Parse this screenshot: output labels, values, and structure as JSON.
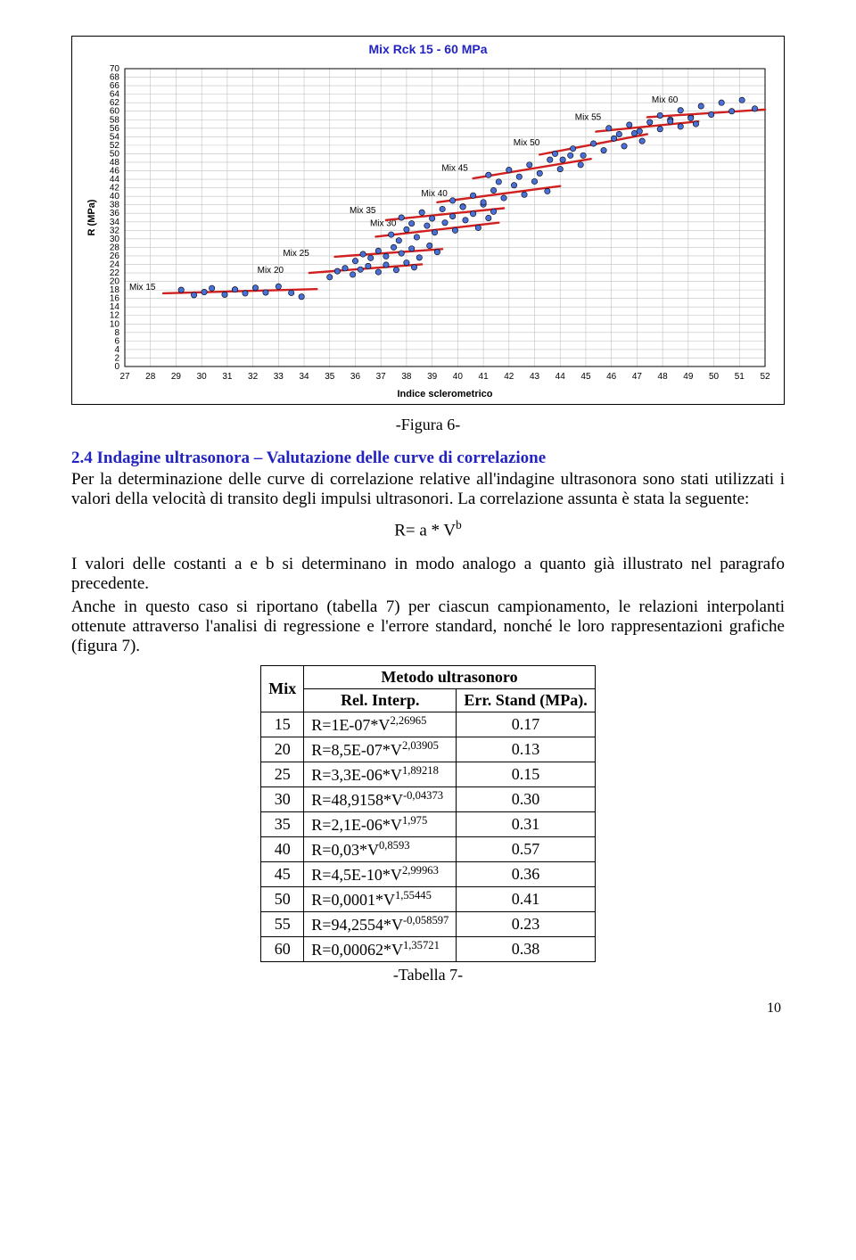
{
  "chart": {
    "title": "Mix Rck 15 - 60 MPa",
    "title_color": "#2323c0",
    "xlabel": "Indice sclerometrico",
    "ylabel": "R (MPa)",
    "xmin": 27,
    "xmax": 52,
    "xstep": 1,
    "ymin": 0,
    "ymax": 70,
    "ystep": 2,
    "bg": "#ffffff",
    "grid_color": "#c0c0c0",
    "border_color": "#000000",
    "marker_fill": "#4a70d8",
    "marker_stroke": "#000000",
    "marker_r": 3.2,
    "line_color": "#d02020",
    "line_w": 2.4,
    "series": [
      {
        "label": "Mix 15",
        "lx": 28.2,
        "ly": 18,
        "line": [
          [
            28.5,
            17.2
          ],
          [
            34.5,
            18.2
          ]
        ],
        "pts": [
          [
            29.2,
            18
          ],
          [
            29.7,
            16.8
          ],
          [
            30.1,
            17.5
          ],
          [
            30.4,
            18.4
          ],
          [
            30.9,
            16.9
          ],
          [
            31.3,
            18.1
          ],
          [
            31.7,
            17.2
          ],
          [
            32.1,
            18.5
          ],
          [
            32.5,
            17.4
          ],
          [
            33.0,
            18.8
          ],
          [
            33.5,
            17.3
          ],
          [
            33.9,
            16.4
          ]
        ]
      },
      {
        "label": "Mix 20",
        "lx": 33.2,
        "ly": 22,
        "line": [
          [
            34.2,
            22
          ],
          [
            38.6,
            24
          ]
        ],
        "pts": [
          [
            35.0,
            21
          ],
          [
            35.3,
            22.4
          ],
          [
            35.6,
            23.1
          ],
          [
            35.9,
            21.6
          ],
          [
            36.2,
            22.8
          ],
          [
            36.5,
            23.6
          ],
          [
            36.9,
            22.2
          ],
          [
            37.2,
            23.9
          ],
          [
            37.6,
            22.7
          ],
          [
            38.0,
            24.4
          ],
          [
            38.3,
            23.3
          ]
        ]
      },
      {
        "label": "Mix 25",
        "lx": 34.2,
        "ly": 26,
        "line": [
          [
            35.2,
            25.8
          ],
          [
            39.4,
            27.6
          ]
        ],
        "pts": [
          [
            36.0,
            24.8
          ],
          [
            36.3,
            26.4
          ],
          [
            36.6,
            25.5
          ],
          [
            36.9,
            27.2
          ],
          [
            37.2,
            25.9
          ],
          [
            37.5,
            28.0
          ],
          [
            37.8,
            26.6
          ],
          [
            38.2,
            27.7
          ],
          [
            38.5,
            25.6
          ],
          [
            38.9,
            28.4
          ],
          [
            39.2,
            26.9
          ]
        ]
      },
      {
        "label": "Mix 30",
        "lx": 37.6,
        "ly": 33,
        "line": [
          [
            36.8,
            30.5
          ],
          [
            41.6,
            33.8
          ]
        ],
        "pts": [
          [
            37.4,
            31
          ],
          [
            37.7,
            29.6
          ],
          [
            38.0,
            32.2
          ],
          [
            38.4,
            30.4
          ],
          [
            38.8,
            33.1
          ],
          [
            39.1,
            31.5
          ],
          [
            39.5,
            33.8
          ],
          [
            39.9,
            32.0
          ],
          [
            40.3,
            34.4
          ],
          [
            40.8,
            32.6
          ],
          [
            41.2,
            34.9
          ]
        ]
      },
      {
        "label": "Mix 35",
        "lx": 36.8,
        "ly": 36,
        "line": [
          [
            37.2,
            34.4
          ],
          [
            41.8,
            37.2
          ]
        ],
        "pts": [
          [
            37.8,
            35
          ],
          [
            38.2,
            33.6
          ],
          [
            38.6,
            36.2
          ],
          [
            39.0,
            34.8
          ],
          [
            39.4,
            37.0
          ],
          [
            39.8,
            35.3
          ],
          [
            40.2,
            37.6
          ],
          [
            40.6,
            35.9
          ],
          [
            41.0,
            38.1
          ],
          [
            41.4,
            36.4
          ]
        ]
      },
      {
        "label": "Mix 40",
        "lx": 39.6,
        "ly": 40,
        "line": [
          [
            39.2,
            38.6
          ],
          [
            44.0,
            42.4
          ]
        ],
        "pts": [
          [
            39.8,
            39
          ],
          [
            40.2,
            37.5
          ],
          [
            40.6,
            40.2
          ],
          [
            41.0,
            38.6
          ],
          [
            41.4,
            41.4
          ],
          [
            41.8,
            39.6
          ],
          [
            42.2,
            42.6
          ],
          [
            42.6,
            40.4
          ],
          [
            43.0,
            43.5
          ],
          [
            43.5,
            41.2
          ]
        ]
      },
      {
        "label": "Mix 45",
        "lx": 40.4,
        "ly": 46,
        "line": [
          [
            40.6,
            44.2
          ],
          [
            45.2,
            48.8
          ]
        ],
        "pts": [
          [
            41.2,
            45
          ],
          [
            41.6,
            43.4
          ],
          [
            42.0,
            46.2
          ],
          [
            42.4,
            44.6
          ],
          [
            42.8,
            47.4
          ],
          [
            43.2,
            45.4
          ],
          [
            43.6,
            48.6
          ],
          [
            44.0,
            46.4
          ],
          [
            44.4,
            49.6
          ],
          [
            44.8,
            47.4
          ]
        ]
      },
      {
        "label": "Mix 50",
        "lx": 43.2,
        "ly": 52,
        "line": [
          [
            43.2,
            49.8
          ],
          [
            47.4,
            54.6
          ]
        ],
        "pts": [
          [
            43.8,
            50
          ],
          [
            44.1,
            48.6
          ],
          [
            44.5,
            51.2
          ],
          [
            44.9,
            49.6
          ],
          [
            45.3,
            52.4
          ],
          [
            45.7,
            50.8
          ],
          [
            46.1,
            53.6
          ],
          [
            46.5,
            51.8
          ],
          [
            46.9,
            54.8
          ],
          [
            47.2,
            53.0
          ]
        ]
      },
      {
        "label": "Mix 55",
        "lx": 45.6,
        "ly": 58,
        "line": [
          [
            45.4,
            55.2
          ],
          [
            49.4,
            57.6
          ]
        ],
        "pts": [
          [
            45.9,
            56
          ],
          [
            46.3,
            54.6
          ],
          [
            46.7,
            56.8
          ],
          [
            47.1,
            55.3
          ],
          [
            47.5,
            57.4
          ],
          [
            47.9,
            55.8
          ],
          [
            48.3,
            58.0
          ],
          [
            48.7,
            56.4
          ],
          [
            49.1,
            58.6
          ],
          [
            49.3,
            57.0
          ]
        ]
      },
      {
        "label": "Mix 60",
        "lx": 48.6,
        "ly": 62,
        "line": [
          [
            47.4,
            58.6
          ],
          [
            52.0,
            60.4
          ]
        ],
        "pts": [
          [
            47.9,
            59
          ],
          [
            48.3,
            57.6
          ],
          [
            48.7,
            60.2
          ],
          [
            49.1,
            58.4
          ],
          [
            49.5,
            61.2
          ],
          [
            49.9,
            59.2
          ],
          [
            50.3,
            62.0
          ],
          [
            50.7,
            60.0
          ],
          [
            51.1,
            62.6
          ],
          [
            51.6,
            60.6
          ]
        ]
      }
    ]
  },
  "figure6_caption": "-Figura 6-",
  "section": {
    "heading": "2.4 Indagine ultrasonora – Valutazione delle curve di correlazione",
    "p1": "Per la determinazione delle curve di correlazione relative all'indagine ultrasonora sono stati utilizzati i valori della velocità di transito degli impulsi ultrasonori. La correlazione assunta è stata la seguente:",
    "formula_base": "R= a * V",
    "formula_exp": "b",
    "p2": "I valori delle costanti a e b si determinano in modo analogo a quanto già illustrato nel paragrafo precedente.",
    "p3": "Anche in questo caso si riportano (tabella 7) per ciascun campionamento, le relazioni interpolanti ottenute attraverso l'analisi di regressione e l'errore standard, nonché le loro rappresentazioni grafiche (figura 7)."
  },
  "table7": {
    "header_top": "Metodo ultrasonoro",
    "col_mix": "Mix",
    "col_rel": "Rel. Interp.",
    "col_err": "Err. Stand (MPa).",
    "rows": [
      {
        "mix": "15",
        "rel_a": "R=1E-07*V",
        "rel_e": "2,26965",
        "err": "0.17"
      },
      {
        "mix": "20",
        "rel_a": "R=8,5E-07*V",
        "rel_e": "2,03905",
        "err": "0.13"
      },
      {
        "mix": "25",
        "rel_a": "R=3,3E-06*V",
        "rel_e": "1,89218",
        "err": "0.15"
      },
      {
        "mix": "30",
        "rel_a": "R=48,9158*V",
        "rel_e": "-0,04373",
        "err": "0.30"
      },
      {
        "mix": "35",
        "rel_a": "R=2,1E-06*V",
        "rel_e": "1,975",
        "err": "0.31"
      },
      {
        "mix": "40",
        "rel_a": "R=0,03*V",
        "rel_e": "0,8593",
        "err": "0.57"
      },
      {
        "mix": "45",
        "rel_a": "R=4,5E-10*V",
        "rel_e": "2,99963",
        "err": "0.36"
      },
      {
        "mix": "50",
        "rel_a": "R=0,0001*V",
        "rel_e": "1,55445",
        "err": "0.41"
      },
      {
        "mix": "55",
        "rel_a": "R=94,2554*V",
        "rel_e": "-0,058597",
        "err": "0.23"
      },
      {
        "mix": "60",
        "rel_a": "R=0,00062*V",
        "rel_e": "1,35721",
        "err": "0.38"
      }
    ],
    "caption": "-Tabella 7-"
  },
  "page_number": "10"
}
